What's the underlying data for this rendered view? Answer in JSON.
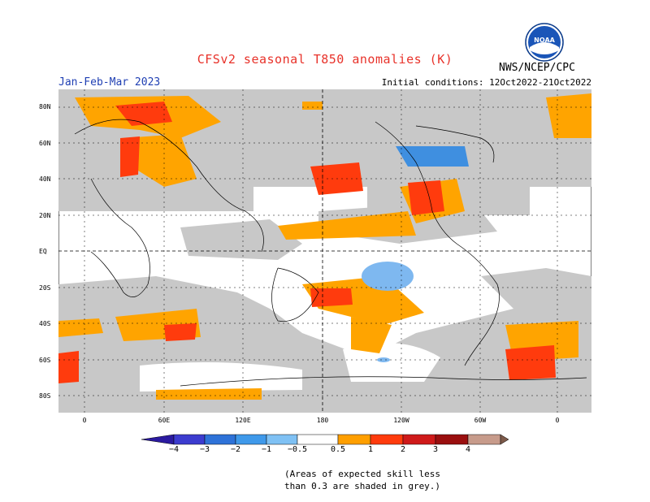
{
  "header": {
    "title": "CFSv2 seasonal T850 anomalies (K)",
    "period": "Jan-Feb-Mar 2023",
    "initial_conditions": "Initial conditions: 12Oct2022-21Oct2022",
    "agency": "NWS/NCEP/CPC",
    "logo_text": "NOAA"
  },
  "map": {
    "lat_labels": [
      "80N",
      "60N",
      "40N",
      "20N",
      "EQ",
      "20S",
      "40S",
      "60S",
      "80S"
    ],
    "lon_labels": [
      "0",
      "60E",
      "120E",
      "180",
      "120W",
      "60W",
      "0"
    ],
    "colors": {
      "grey_mask": "#c8c8c8",
      "warm_05": "#ffa400",
      "warm_1": "#ff3b0d",
      "warm_2": "#cf1a1a",
      "cool_05": "#7eb8f0",
      "cool_1": "#3f8fe0"
    }
  },
  "colorbar": {
    "labels": [
      "−4",
      "−3",
      "−2",
      "−1",
      "−0.5",
      "0.5",
      "1",
      "2",
      "3",
      "4"
    ],
    "colors": [
      "#2b1aa0",
      "#3c3ccf",
      "#2e72d8",
      "#3f99ea",
      "#7fc1f4",
      "#ffffff",
      "#ff9f00",
      "#ff3b0d",
      "#cf1a1a",
      "#9a0f0f",
      "#c79b8b",
      "#7d5a4a"
    ]
  },
  "footnote": {
    "line1": "(Areas of expected skill less",
    "line2": "than 0.3 are shaded in grey.)"
  }
}
